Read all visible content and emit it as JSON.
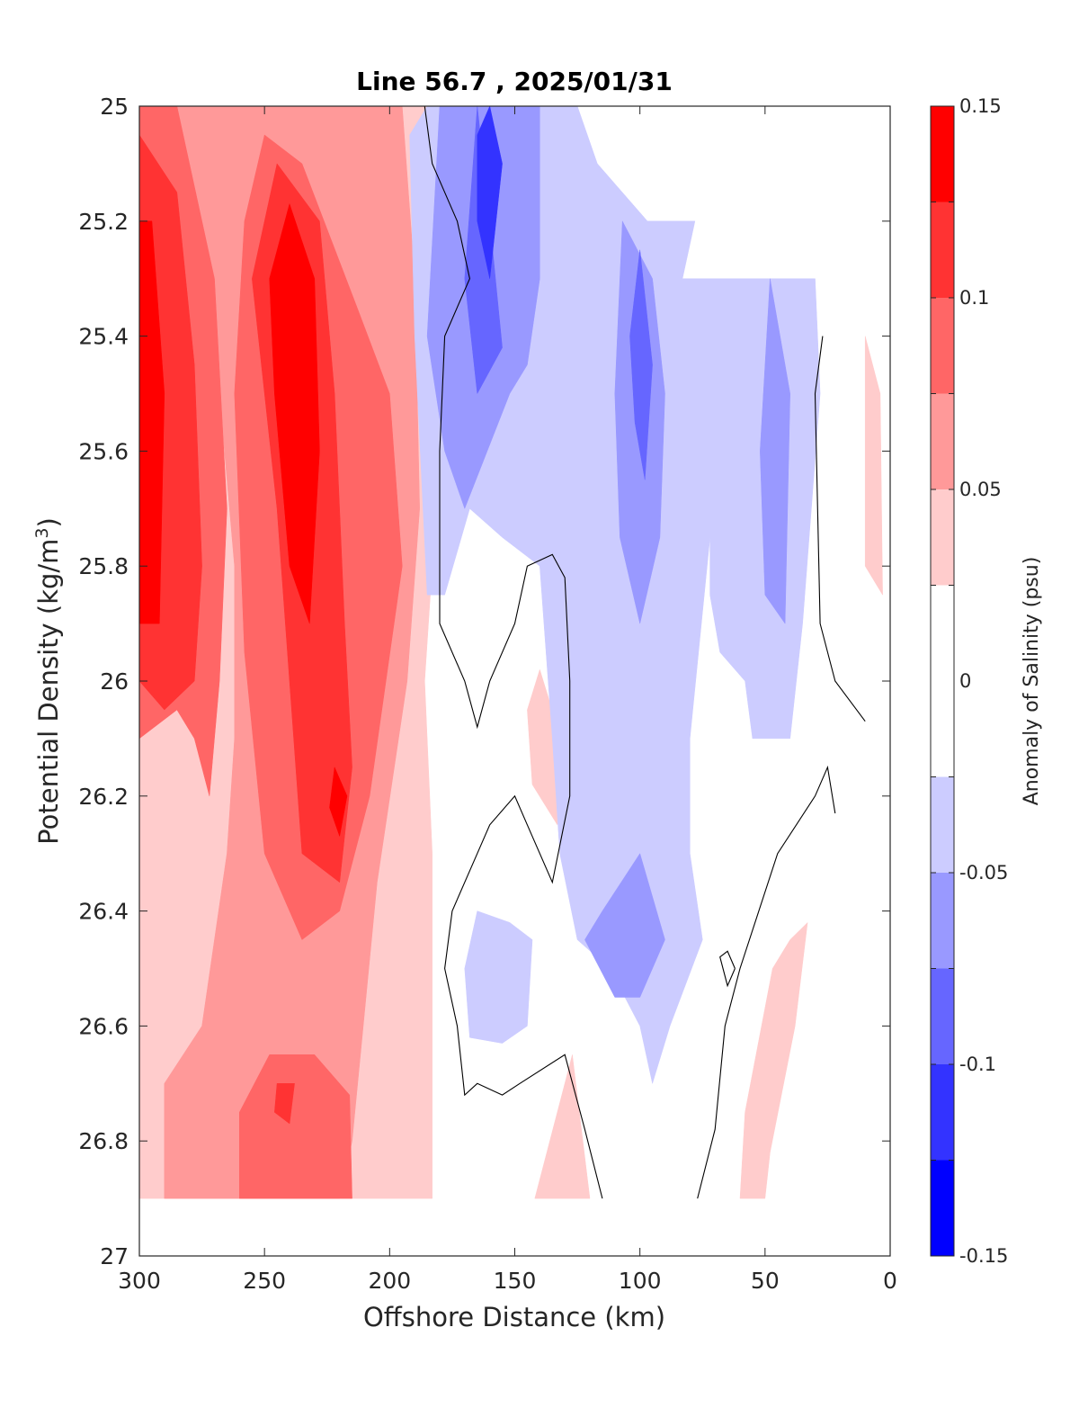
{
  "chart_data": {
    "type": "heatmap",
    "subtype": "filled-contour",
    "title": "Line 56.7 , 2025/01/31",
    "xlabel": "Offshore Distance (km)",
    "ylabel_text": "Potential Density (kg/m",
    "ylabel_superscript": "3",
    "ylabel_close": ")",
    "colorbar_label": "Anomaly of Salinity (psu)",
    "x_axis": {
      "range": [
        300,
        0
      ],
      "reversed": true,
      "ticks": [
        300,
        250,
        200,
        150,
        100,
        50,
        0
      ],
      "tick_labels": [
        "300",
        "250",
        "200",
        "150",
        "100",
        "50",
        "0"
      ]
    },
    "y_axis": {
      "range": [
        25,
        27
      ],
      "reversed": true,
      "ticks": [
        25,
        25.2,
        25.4,
        25.6,
        25.8,
        26,
        26.2,
        26.4,
        26.6,
        26.8,
        27
      ],
      "tick_labels": [
        "25",
        "25.2",
        "25.4",
        "25.6",
        "25.8",
        "26",
        "26.2",
        "26.4",
        "26.6",
        "26.8",
        "27"
      ]
    },
    "colorbar": {
      "range": [
        -0.15,
        0.15
      ],
      "tick_values": [
        0.15,
        0.1,
        0.05,
        0,
        -0.05,
        -0.1,
        -0.15
      ],
      "tick_labels": [
        "0.15",
        "0.1",
        "0.05",
        "0",
        "-0.05",
        "-0.1",
        "-0.15"
      ],
      "levels": [
        -0.15,
        -0.125,
        -0.1,
        -0.075,
        -0.05,
        -0.025,
        0.025,
        0.05,
        0.075,
        0.1,
        0.125,
        0.15
      ],
      "colors": [
        "#0000ff",
        "#3333ff",
        "#6666ff",
        "#9999ff",
        "#ccccff",
        "#ffffff",
        "#ffcccc",
        "#ff9999",
        "#ff6666",
        "#ff3333",
        "#ff0000"
      ]
    },
    "features": [
      {
        "kind": "region",
        "anomaly": 0.035,
        "points": [
          [
            300,
            25
          ],
          [
            175,
            25
          ],
          [
            178,
            25.4
          ],
          [
            183,
            25.8
          ],
          [
            186,
            26
          ],
          [
            183,
            26.3
          ],
          [
            183,
            26.9
          ],
          [
            300,
            26.9
          ]
        ]
      },
      {
        "kind": "region",
        "anomaly": 0.035,
        "points": [
          [
            33,
            26.42
          ],
          [
            38,
            26.6
          ],
          [
            48,
            26.82
          ],
          [
            50,
            26.9
          ],
          [
            60,
            26.9
          ],
          [
            58,
            26.75
          ],
          [
            47,
            26.5
          ],
          [
            40,
            26.45
          ]
        ]
      },
      {
        "kind": "region",
        "anomaly": 0.035,
        "points": [
          [
            10,
            25.4
          ],
          [
            4,
            25.5
          ],
          [
            3,
            25.85
          ],
          [
            10,
            25.8
          ],
          [
            10,
            25.4
          ]
        ]
      },
      {
        "kind": "region",
        "anomaly": 0.035,
        "points": [
          [
            127,
            26.65
          ],
          [
            120,
            26.9
          ],
          [
            142,
            26.9
          ]
        ]
      },
      {
        "kind": "region",
        "anomaly": 0.035,
        "points": [
          [
            140,
            25.98
          ],
          [
            128,
            26.15
          ],
          [
            133,
            26.25
          ],
          [
            143,
            26.18
          ],
          [
            145,
            26.05
          ]
        ]
      },
      {
        "kind": "region",
        "anomaly": 0.06,
        "points": [
          [
            300,
            25
          ],
          [
            195,
            25
          ],
          [
            190,
            25.3
          ],
          [
            188,
            25.7
          ],
          [
            193,
            26.0
          ],
          [
            205,
            26.35
          ],
          [
            215,
            26.8
          ],
          [
            220,
            26.9
          ],
          [
            290,
            26.9
          ],
          [
            290,
            26.7
          ],
          [
            275,
            26.6
          ],
          [
            265,
            26.3
          ],
          [
            262,
            26.1
          ],
          [
            262,
            25.8
          ],
          [
            270,
            25.4
          ],
          [
            280,
            25.2
          ],
          [
            285,
            25
          ]
        ]
      },
      {
        "kind": "region",
        "anomaly": 0.085,
        "points": [
          [
            300,
            25
          ],
          [
            285,
            25
          ],
          [
            270,
            25.3
          ],
          [
            265,
            25.7
          ],
          [
            268,
            26.0
          ],
          [
            272,
            26.2
          ],
          [
            278,
            26.1
          ],
          [
            285,
            26.05
          ],
          [
            300,
            26.1
          ]
        ]
      },
      {
        "kind": "region",
        "anomaly": 0.085,
        "points": [
          [
            250,
            25.05
          ],
          [
            235,
            25.1
          ],
          [
            213,
            25.35
          ],
          [
            200,
            25.5
          ],
          [
            195,
            25.8
          ],
          [
            208,
            26.2
          ],
          [
            220,
            26.4
          ],
          [
            235,
            26.45
          ],
          [
            250,
            26.3
          ],
          [
            258,
            25.95
          ],
          [
            262,
            25.5
          ],
          [
            258,
            25.2
          ]
        ]
      },
      {
        "kind": "region",
        "anomaly": 0.085,
        "points": [
          [
            248,
            26.65
          ],
          [
            230,
            26.65
          ],
          [
            216,
            26.72
          ],
          [
            215,
            26.9
          ],
          [
            260,
            26.9
          ],
          [
            260,
            26.75
          ]
        ]
      },
      {
        "kind": "region",
        "anomaly": 0.11,
        "points": [
          [
            300,
            25.05
          ],
          [
            285,
            25.15
          ],
          [
            278,
            25.45
          ],
          [
            275,
            25.8
          ],
          [
            278,
            26.0
          ],
          [
            290,
            26.05
          ],
          [
            300,
            26.0
          ]
        ]
      },
      {
        "kind": "region",
        "anomaly": 0.11,
        "points": [
          [
            245,
            25.1
          ],
          [
            228,
            25.2
          ],
          [
            222,
            25.5
          ],
          [
            218,
            25.9
          ],
          [
            215,
            26.15
          ],
          [
            220,
            26.35
          ],
          [
            235,
            26.3
          ],
          [
            240,
            26.0
          ],
          [
            245,
            25.7
          ],
          [
            255,
            25.3
          ]
        ]
      },
      {
        "kind": "region",
        "anomaly": 0.11,
        "points": [
          [
            245,
            26.7
          ],
          [
            238,
            26.7
          ],
          [
            240,
            26.77
          ],
          [
            246,
            26.75
          ]
        ]
      },
      {
        "kind": "region",
        "anomaly": 0.135,
        "points": [
          [
            295,
            25.2
          ],
          [
            290,
            25.5
          ],
          [
            292,
            25.9
          ],
          [
            300,
            25.9
          ],
          [
            300,
            25.2
          ]
        ]
      },
      {
        "kind": "region",
        "anomaly": 0.135,
        "points": [
          [
            240,
            25.17
          ],
          [
            230,
            25.3
          ],
          [
            228,
            25.6
          ],
          [
            232,
            25.9
          ],
          [
            240,
            25.8
          ],
          [
            246,
            25.5
          ],
          [
            248,
            25.3
          ]
        ]
      },
      {
        "kind": "region",
        "anomaly": 0.135,
        "points": [
          [
            222,
            26.15
          ],
          [
            217,
            26.2
          ],
          [
            220,
            26.27
          ],
          [
            224,
            26.22
          ]
        ]
      },
      {
        "kind": "region",
        "anomaly": -0.035,
        "points": [
          [
            170,
            25
          ],
          [
            125,
            25
          ],
          [
            117,
            25.1
          ],
          [
            97,
            25.2
          ],
          [
            78,
            25.2
          ],
          [
            83,
            25.3
          ],
          [
            30,
            25.3
          ],
          [
            28,
            25.5
          ],
          [
            35,
            25.9
          ],
          [
            40,
            26.1
          ],
          [
            55,
            26.1
          ],
          [
            58,
            26.0
          ],
          [
            68,
            25.95
          ],
          [
            72,
            25.85
          ],
          [
            72,
            25.75
          ],
          [
            80,
            26.1
          ],
          [
            80,
            26.3
          ],
          [
            75,
            26.45
          ],
          [
            88,
            26.6
          ],
          [
            95,
            26.7
          ],
          [
            100,
            26.6
          ],
          [
            112,
            26.5
          ],
          [
            125,
            26.45
          ],
          [
            132,
            26.3
          ],
          [
            135,
            26.1
          ],
          [
            140,
            25.8
          ],
          [
            155,
            25.75
          ],
          [
            168,
            25.7
          ],
          [
            178,
            25.85
          ],
          [
            185,
            25.85
          ],
          [
            190,
            25.4
          ],
          [
            192,
            25.05
          ],
          [
            185,
            25
          ]
        ]
      },
      {
        "kind": "region",
        "anomaly": -0.035,
        "points": [
          [
            165,
            26.4
          ],
          [
            170,
            26.5
          ],
          [
            168,
            26.62
          ],
          [
            155,
            26.63
          ],
          [
            145,
            26.6
          ],
          [
            143,
            26.45
          ],
          [
            152,
            26.42
          ]
        ]
      },
      {
        "kind": "region",
        "anomaly": -0.06,
        "points": [
          [
            180,
            25
          ],
          [
            140,
            25
          ],
          [
            140,
            25.1
          ],
          [
            140,
            25.3
          ],
          [
            145,
            25.45
          ],
          [
            152,
            25.5
          ],
          [
            170,
            25.7
          ],
          [
            178,
            25.6
          ],
          [
            185,
            25.4
          ]
        ]
      },
      {
        "kind": "region",
        "anomaly": -0.06,
        "points": [
          [
            107,
            25.2
          ],
          [
            95,
            25.3
          ],
          [
            90,
            25.5
          ],
          [
            92,
            25.75
          ],
          [
            100,
            25.9
          ],
          [
            108,
            25.75
          ],
          [
            110,
            25.5
          ]
        ]
      },
      {
        "kind": "region",
        "anomaly": -0.06,
        "points": [
          [
            48,
            25.3
          ],
          [
            40,
            25.5
          ],
          [
            42,
            25.9
          ],
          [
            50,
            25.85
          ],
          [
            52,
            25.6
          ]
        ]
      },
      {
        "kind": "region",
        "anomaly": -0.06,
        "points": [
          [
            100,
            26.3
          ],
          [
            115,
            26.4
          ],
          [
            122,
            26.45
          ],
          [
            110,
            26.55
          ],
          [
            100,
            26.55
          ],
          [
            90,
            26.45
          ]
        ]
      },
      {
        "kind": "region",
        "anomaly": -0.085,
        "points": [
          [
            165,
            25
          ],
          [
            160,
            25.2
          ],
          [
            155,
            25.42
          ],
          [
            165,
            25.5
          ],
          [
            170,
            25.3
          ]
        ]
      },
      {
        "kind": "region",
        "anomaly": -0.085,
        "points": [
          [
            100,
            25.25
          ],
          [
            95,
            25.45
          ],
          [
            98,
            25.65
          ],
          [
            102,
            25.55
          ],
          [
            104,
            25.4
          ]
        ]
      },
      {
        "kind": "region",
        "anomaly": -0.11,
        "points": [
          [
            160,
            25
          ],
          [
            155,
            25.1
          ],
          [
            160,
            25.3
          ],
          [
            165,
            25.2
          ],
          [
            165,
            25.05
          ]
        ]
      },
      {
        "kind": "contour",
        "level": 0,
        "points": [
          [
            186,
            25
          ],
          [
            183,
            25.1
          ],
          [
            178,
            25.15
          ],
          [
            173,
            25.2
          ],
          [
            168,
            25.3
          ],
          [
            178,
            25.4
          ],
          [
            180,
            25.6
          ],
          [
            180,
            25.9
          ],
          [
            170,
            26.0
          ],
          [
            165,
            26.08
          ],
          [
            160,
            26.0
          ],
          [
            150,
            25.9
          ],
          [
            145,
            25.8
          ],
          [
            135,
            25.78
          ],
          [
            130,
            25.82
          ],
          [
            128,
            26.0
          ],
          [
            128,
            26.2
          ],
          [
            135,
            26.35
          ],
          [
            145,
            26.25
          ],
          [
            150,
            26.2
          ],
          [
            160,
            26.25
          ],
          [
            165,
            26.3
          ],
          [
            175,
            26.4
          ],
          [
            178,
            26.5
          ],
          [
            173,
            26.6
          ],
          [
            170,
            26.72
          ],
          [
            165,
            26.7
          ],
          [
            155,
            26.72
          ],
          [
            148,
            26.7
          ],
          [
            130,
            26.65
          ],
          [
            122,
            26.78
          ],
          [
            115,
            26.9
          ]
        ]
      },
      {
        "kind": "contour",
        "level": 0,
        "points": [
          [
            77,
            26.9
          ],
          [
            70,
            26.78
          ],
          [
            66,
            26.6
          ],
          [
            60,
            26.5
          ],
          [
            45,
            26.3
          ],
          [
            30,
            26.2
          ],
          [
            25,
            26.15
          ],
          [
            22,
            26.23
          ]
        ]
      },
      {
        "kind": "contour",
        "level": 0,
        "points": [
          [
            27,
            25.4
          ],
          [
            30,
            25.5
          ],
          [
            28,
            25.9
          ],
          [
            22,
            26.0
          ],
          [
            10,
            26.07
          ]
        ]
      },
      {
        "kind": "contour",
        "level": 0,
        "points": [
          [
            62,
            26.5
          ],
          [
            65,
            26.53
          ],
          [
            68,
            26.48
          ],
          [
            65,
            26.47
          ],
          [
            62,
            26.5
          ]
        ]
      }
    ]
  }
}
